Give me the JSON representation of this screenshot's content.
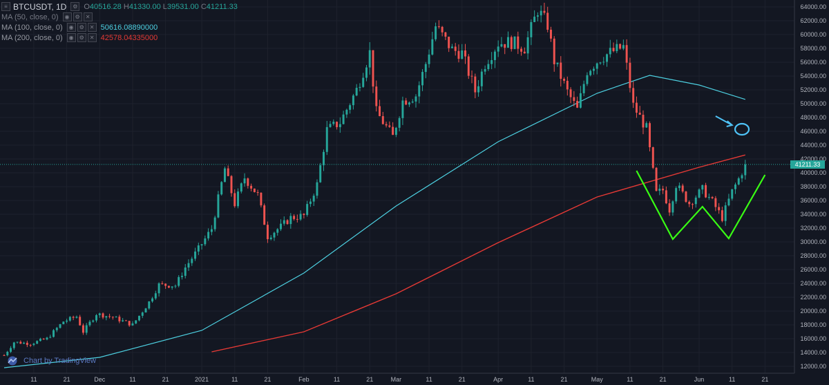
{
  "header": {
    "symbol": "BTCUSDT, 1D",
    "open": "40516.28",
    "high": "41330.00",
    "low": "39531.00",
    "close": "41211.33",
    "open_prefix": "O",
    "high_prefix": "H",
    "low_prefix": "L",
    "close_prefix": "C"
  },
  "indicators": [
    {
      "label": "MA (50, close, 0)",
      "value": "",
      "color": "#787b86"
    },
    {
      "label": "MA (100, close, 0)",
      "value": "50616.08890000",
      "color": "#4dd0e1"
    },
    {
      "label": "MA (200, close, 0)",
      "value": "42578.04335000",
      "color": "#e53935"
    }
  ],
  "watermark": "Chart by TradingView",
  "last_price_label": "41211.33",
  "chart_data": {
    "type": "candlestick",
    "symbol": "BTCUSDT",
    "interval": "1D",
    "ylim": [
      11000,
      65000
    ],
    "y_ticks": [
      12000,
      14000,
      16000,
      18000,
      20000,
      22000,
      24000,
      26000,
      28000,
      30000,
      32000,
      34000,
      36000,
      38000,
      40000,
      42000,
      44000,
      46000,
      48000,
      50000,
      52000,
      54000,
      56000,
      58000,
      60000,
      62000,
      64000
    ],
    "y_tick_labels": [
      "12000.00",
      "14000.00",
      "16000.00",
      "18000.00",
      "20000.00",
      "22000.00",
      "24000.00",
      "26000.00",
      "28000.00",
      "30000.00",
      "32000.00",
      "34000.00",
      "36000.00",
      "38000.00",
      "40000.00",
      "42000.00",
      "44000.00",
      "46000.00",
      "48000.00",
      "50000.00",
      "52000.00",
      "54000.00",
      "56000.00",
      "58000.00",
      "60000.00",
      "62000.00",
      "64000.00"
    ],
    "x_start": "2020-11-02",
    "x_end": "2021-06-27",
    "x_ticks": [
      {
        "label": "11",
        "date": "2020-11-11"
      },
      {
        "label": "21",
        "date": "2020-11-21"
      },
      {
        "label": "Dec",
        "date": "2020-12-01"
      },
      {
        "label": "11",
        "date": "2020-12-11"
      },
      {
        "label": "21",
        "date": "2020-12-21"
      },
      {
        "label": "2021",
        "date": "2021-01-01"
      },
      {
        "label": "11",
        "date": "2021-01-11"
      },
      {
        "label": "21",
        "date": "2021-01-21"
      },
      {
        "label": "Feb",
        "date": "2021-02-01"
      },
      {
        "label": "11",
        "date": "2021-02-11"
      },
      {
        "label": "21",
        "date": "2021-02-21"
      },
      {
        "label": "Mar",
        "date": "2021-03-01"
      },
      {
        "label": "11",
        "date": "2021-03-11"
      },
      {
        "label": "21",
        "date": "2021-03-21"
      },
      {
        "label": "Apr",
        "date": "2021-04-01"
      },
      {
        "label": "11",
        "date": "2021-04-11"
      },
      {
        "label": "21",
        "date": "2021-04-21"
      },
      {
        "label": "May",
        "date": "2021-05-01"
      },
      {
        "label": "11",
        "date": "2021-05-11"
      },
      {
        "label": "21",
        "date": "2021-05-21"
      },
      {
        "label": "Jun",
        "date": "2021-06-01"
      },
      {
        "label": "11",
        "date": "2021-06-11"
      },
      {
        "label": "21",
        "date": "2021-06-21"
      }
    ],
    "closes": [
      {
        "date": "2020-11-02",
        "close": 13600
      },
      {
        "date": "2020-11-05",
        "close": 15500
      },
      {
        "date": "2020-11-10",
        "close": 15300
      },
      {
        "date": "2020-11-15",
        "close": 16000
      },
      {
        "date": "2020-11-20",
        "close": 18500
      },
      {
        "date": "2020-11-24",
        "close": 19200
      },
      {
        "date": "2020-11-26",
        "close": 17000
      },
      {
        "date": "2020-11-30",
        "close": 19600
      },
      {
        "date": "2020-12-05",
        "close": 19100
      },
      {
        "date": "2020-12-11",
        "close": 18000
      },
      {
        "date": "2020-12-16",
        "close": 21300
      },
      {
        "date": "2020-12-19",
        "close": 23800
      },
      {
        "date": "2020-12-24",
        "close": 23700
      },
      {
        "date": "2020-12-27",
        "close": 26300
      },
      {
        "date": "2020-12-31",
        "close": 29000
      },
      {
        "date": "2021-01-04",
        "close": 31900
      },
      {
        "date": "2021-01-08",
        "close": 40600
      },
      {
        "date": "2021-01-11",
        "close": 35500
      },
      {
        "date": "2021-01-14",
        "close": 39300
      },
      {
        "date": "2021-01-18",
        "close": 36800
      },
      {
        "date": "2021-01-21",
        "close": 30800
      },
      {
        "date": "2021-01-25",
        "close": 32200
      },
      {
        "date": "2021-01-28",
        "close": 33500
      },
      {
        "date": "2021-02-01",
        "close": 33800
      },
      {
        "date": "2021-02-05",
        "close": 38300
      },
      {
        "date": "2021-02-08",
        "close": 46200
      },
      {
        "date": "2021-02-12",
        "close": 47300
      },
      {
        "date": "2021-02-17",
        "close": 52000
      },
      {
        "date": "2021-02-21",
        "close": 57400
      },
      {
        "date": "2021-02-23",
        "close": 48800
      },
      {
        "date": "2021-02-28",
        "close": 45200
      },
      {
        "date": "2021-03-03",
        "close": 50400
      },
      {
        "date": "2021-03-07",
        "close": 51200
      },
      {
        "date": "2021-03-10",
        "close": 55800
      },
      {
        "date": "2021-03-13",
        "close": 61200
      },
      {
        "date": "2021-03-18",
        "close": 57800
      },
      {
        "date": "2021-03-21",
        "close": 57300
      },
      {
        "date": "2021-03-25",
        "close": 51800
      },
      {
        "date": "2021-03-28",
        "close": 55800
      },
      {
        "date": "2021-04-01",
        "close": 58800
      },
      {
        "date": "2021-04-05",
        "close": 58900
      },
      {
        "date": "2021-04-09",
        "close": 58100
      },
      {
        "date": "2021-04-13",
        "close": 63600
      },
      {
        "date": "2021-04-16",
        "close": 61400
      },
      {
        "date": "2021-04-18",
        "close": 56200
      },
      {
        "date": "2021-04-22",
        "close": 51700
      },
      {
        "date": "2021-04-25",
        "close": 49100
      },
      {
        "date": "2021-04-28",
        "close": 54800
      },
      {
        "date": "2021-05-02",
        "close": 56600
      },
      {
        "date": "2021-05-05",
        "close": 57400
      },
      {
        "date": "2021-05-09",
        "close": 58200
      },
      {
        "date": "2021-05-12",
        "close": 49700
      },
      {
        "date": "2021-05-16",
        "close": 46400
      },
      {
        "date": "2021-05-19",
        "close": 37000
      },
      {
        "date": "2021-05-21",
        "close": 37500
      },
      {
        "date": "2021-05-23",
        "close": 34700
      },
      {
        "date": "2021-05-25",
        "close": 38300
      },
      {
        "date": "2021-05-29",
        "close": 35600
      },
      {
        "date": "2021-06-02",
        "close": 37600
      },
      {
        "date": "2021-06-05",
        "close": 35800
      },
      {
        "date": "2021-06-08",
        "close": 33500
      },
      {
        "date": "2021-06-11",
        "close": 37300
      },
      {
        "date": "2021-06-13",
        "close": 39100
      },
      {
        "date": "2021-06-15",
        "close": 41211
      }
    ],
    "ma100": [
      {
        "date": "2020-11-02",
        "value": 11800
      },
      {
        "date": "2020-12-01",
        "value": 13300
      },
      {
        "date": "2021-01-01",
        "value": 17200
      },
      {
        "date": "2021-02-01",
        "value": 25500
      },
      {
        "date": "2021-03-01",
        "value": 35200
      },
      {
        "date": "2021-04-01",
        "value": 44500
      },
      {
        "date": "2021-05-01",
        "value": 51500
      },
      {
        "date": "2021-05-17",
        "value": 54100
      },
      {
        "date": "2021-06-01",
        "value": 52700
      },
      {
        "date": "2021-06-15",
        "value": 50616
      }
    ],
    "ma200": [
      {
        "date": "2021-01-04",
        "value": 14100
      },
      {
        "date": "2021-02-01",
        "value": 17000
      },
      {
        "date": "2021-03-01",
        "value": 22500
      },
      {
        "date": "2021-04-01",
        "value": 29900
      },
      {
        "date": "2021-05-01",
        "value": 36500
      },
      {
        "date": "2021-06-01",
        "value": 40800
      },
      {
        "date": "2021-06-15",
        "value": 42578
      }
    ],
    "last_price": 41211.33,
    "annotations": [
      {
        "type": "w-pattern",
        "color": "#39ff14",
        "points": [
          {
            "date": "2021-05-13",
            "value": 40300
          },
          {
            "date": "2021-05-24",
            "value": 30400
          },
          {
            "date": "2021-06-02",
            "value": 35100
          },
          {
            "date": "2021-06-10",
            "value": 30500
          },
          {
            "date": "2021-06-21",
            "value": 39700
          }
        ]
      },
      {
        "type": "arrow-circle",
        "color": "#4fc3f7",
        "arrow_from": {
          "date": "2021-06-06",
          "value": 48200
        },
        "arrow_to": {
          "date": "2021-06-11",
          "value": 46900
        },
        "circle_at": {
          "date": "2021-06-14",
          "value": 46300
        }
      }
    ]
  }
}
